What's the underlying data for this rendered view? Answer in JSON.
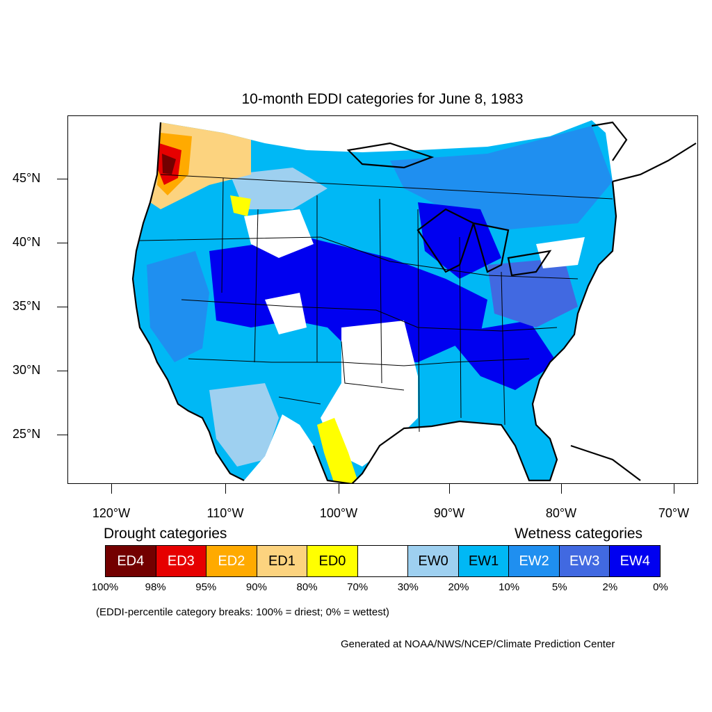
{
  "title": "10-month EDDI categories for June 8, 1983",
  "lat_labels": [
    "45°N",
    "40°N",
    "35°N",
    "30°N",
    "25°N"
  ],
  "lon_labels": [
    "120°W",
    "110°W",
    "100°W",
    "90°W",
    "80°W",
    "70°W"
  ],
  "legend": {
    "drought_heading": "Drought categories",
    "wetness_heading": "Wetness categories",
    "categories": [
      {
        "label": "ED4",
        "color": "#730000",
        "text_color": "#ffffff"
      },
      {
        "label": "ED3",
        "color": "#e60000",
        "text_color": "#ffffff"
      },
      {
        "label": "ED2",
        "color": "#ffaa00",
        "text_color": "#ffffff"
      },
      {
        "label": "ED1",
        "color": "#fcd37f",
        "text_color": "#000000"
      },
      {
        "label": "ED0",
        "color": "#ffff00",
        "text_color": "#000000"
      },
      {
        "label": "",
        "color": "#ffffff",
        "text_color": "#000000"
      },
      {
        "label": "EW0",
        "color": "#9ed0f0",
        "text_color": "#000000"
      },
      {
        "label": "EW1",
        "color": "#00b8f5",
        "text_color": "#000000"
      },
      {
        "label": "EW2",
        "color": "#1f8ff0",
        "text_color": "#ffffff"
      },
      {
        "label": "EW3",
        "color": "#4169e1",
        "text_color": "#ffffff"
      },
      {
        "label": "EW4",
        "color": "#0000f0",
        "text_color": "#ffffff"
      }
    ],
    "percentiles": [
      "100%",
      "98%",
      "95%",
      "90%",
      "80%",
      "70%",
      "30%",
      "20%",
      "10%",
      "5%",
      "2%",
      "0%"
    ]
  },
  "note": "(EDDI-percentile category breaks: 100% = driest; 0% = wettest)",
  "credit": "Generated at NOAA/NWS/NCEP/Climate Prediction Center"
}
